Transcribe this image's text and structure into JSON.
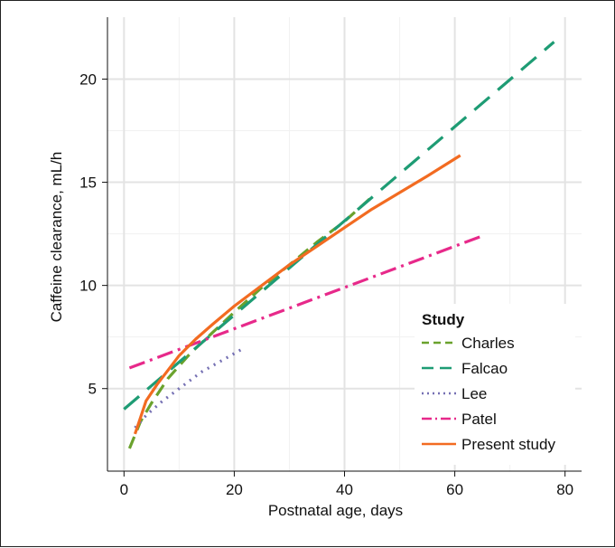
{
  "chart_data": {
    "type": "line",
    "title": "",
    "xlabel": "Postnatal age, days",
    "ylabel": "Caffeine clearance, mL/h",
    "xlim": [
      -3,
      83
    ],
    "ylim": [
      1,
      23
    ],
    "xticks": [
      0,
      20,
      40,
      60,
      80
    ],
    "yticks": [
      5,
      10,
      15,
      20
    ],
    "grid": true,
    "legend": {
      "title": "Study",
      "placement": "bottom-right"
    },
    "series": [
      {
        "name": "Charles",
        "color": "#6aa22d",
        "dash": "14 8",
        "x": [
          1,
          3,
          5,
          8,
          12,
          16,
          20,
          25,
          30,
          35,
          40,
          45
        ],
        "y": [
          2.1,
          3.4,
          4.3,
          5.5,
          6.7,
          7.7,
          8.7,
          9.9,
          11.0,
          12.1,
          13.1,
          14.3
        ]
      },
      {
        "name": "Falcao",
        "color": "#1e9c74",
        "dash": "22 12",
        "x": [
          0,
          78
        ],
        "y": [
          4.0,
          21.8
        ]
      },
      {
        "name": "Lee",
        "color": "#7570b3",
        "dash": "2 6",
        "x": [
          2,
          4,
          7,
          10,
          14,
          18,
          22
        ],
        "y": [
          3.1,
          3.7,
          4.4,
          5.0,
          5.8,
          6.4,
          7.0
        ]
      },
      {
        "name": "Patel",
        "color": "#e7298a",
        "dash": "18 6 3 6",
        "x": [
          1,
          65
        ],
        "y": [
          6.0,
          12.4
        ]
      },
      {
        "name": "Present study",
        "color": "#f26b21",
        "dash": "",
        "x": [
          2,
          3,
          4,
          6,
          8,
          10,
          13,
          16,
          20,
          25,
          30,
          35,
          40,
          45,
          50,
          55,
          61
        ],
        "y": [
          2.8,
          3.6,
          4.4,
          5.2,
          5.9,
          6.6,
          7.4,
          8.1,
          9.0,
          10.0,
          11.0,
          11.9,
          12.8,
          13.7,
          14.5,
          15.3,
          16.3
        ]
      }
    ]
  }
}
